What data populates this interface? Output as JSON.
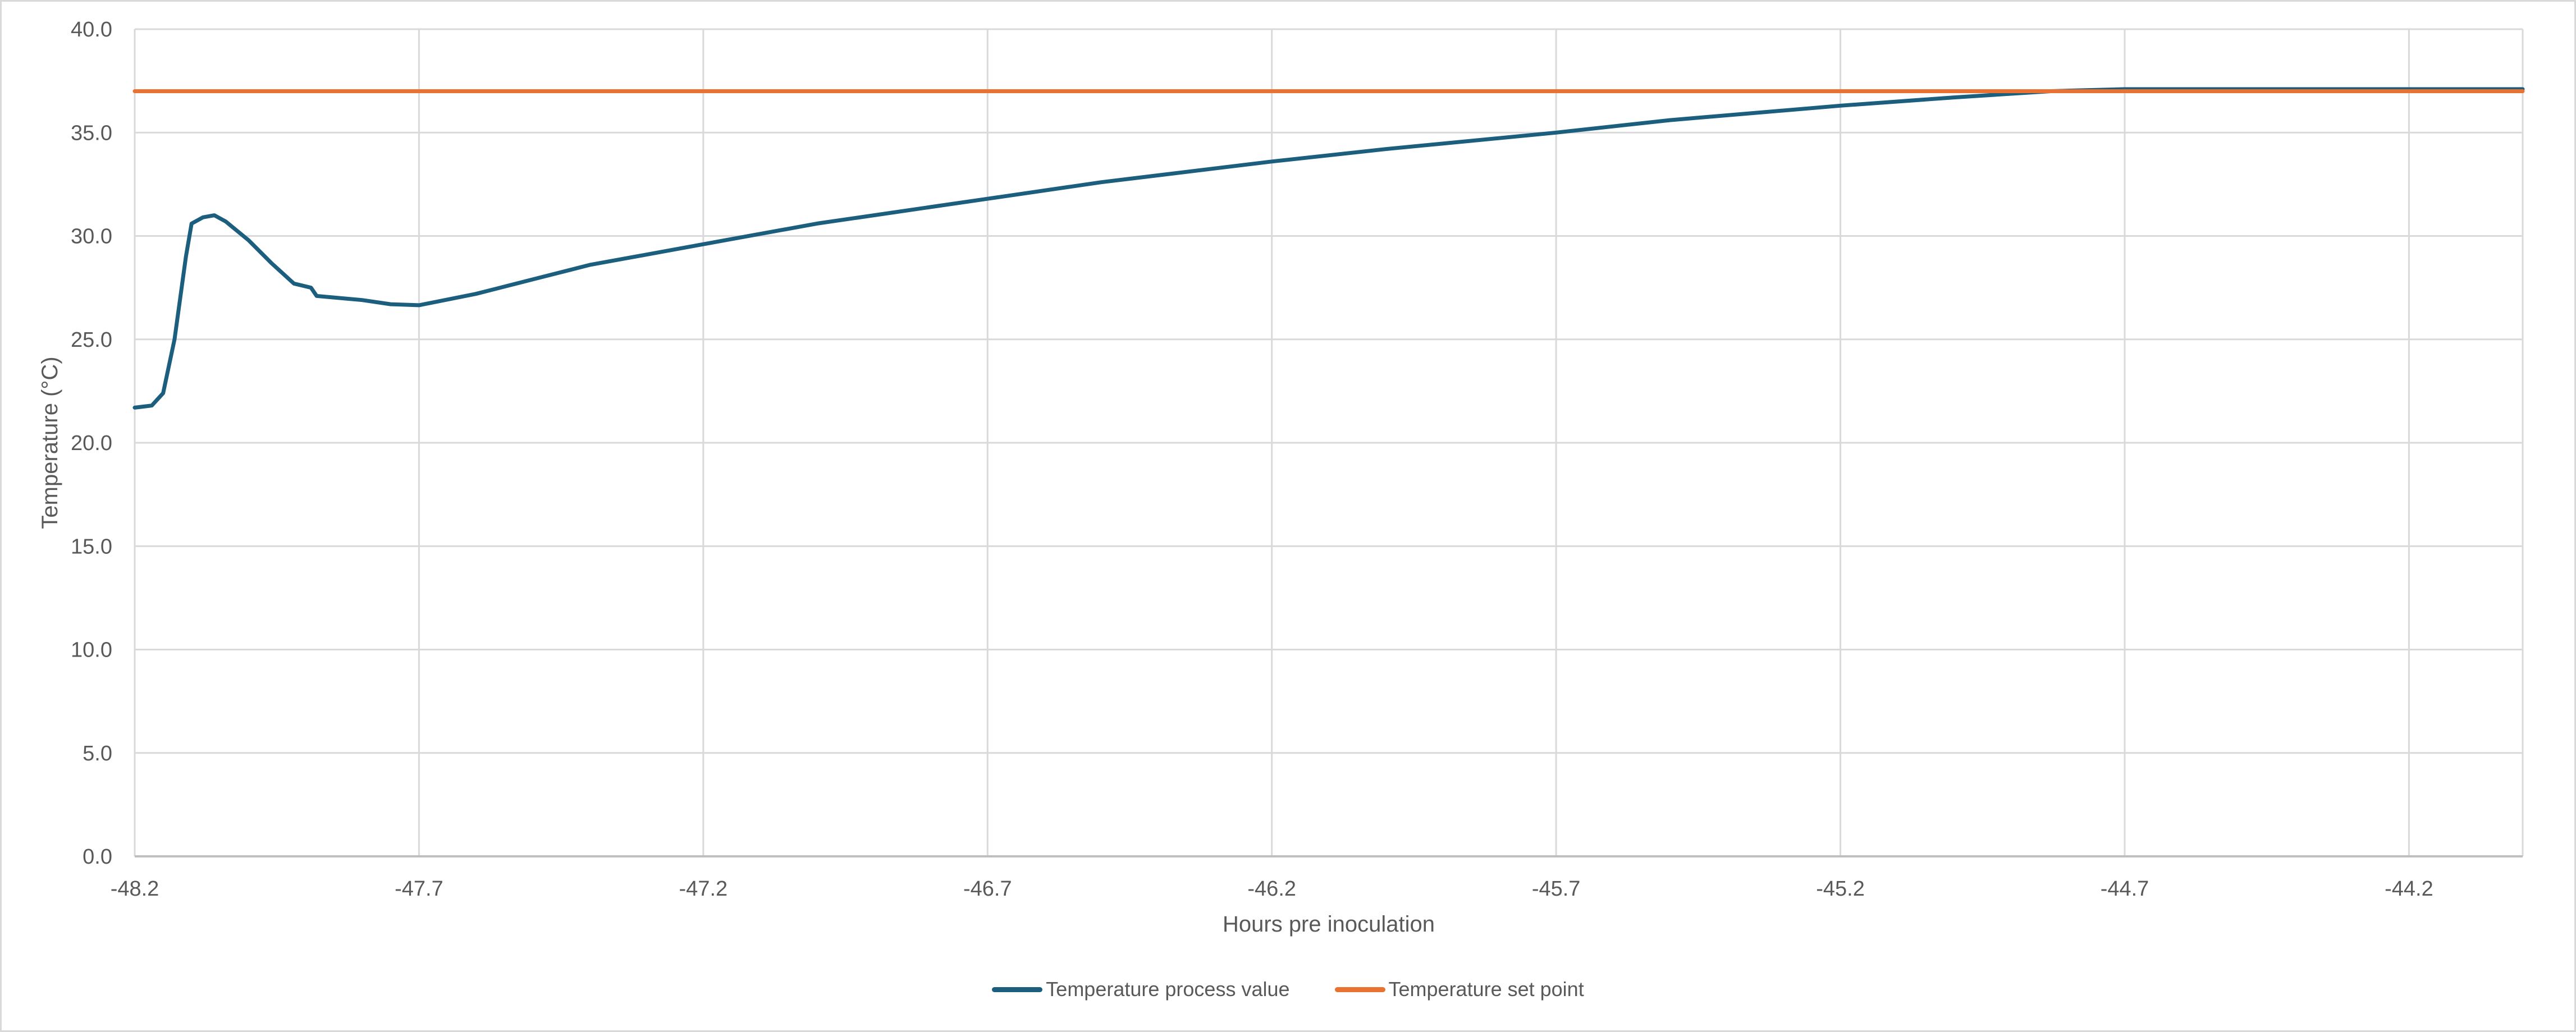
{
  "chart_data": {
    "type": "line",
    "title": "",
    "xlabel": "Hours pre inoculation",
    "ylabel": "Temperature  (°C)",
    "xlim": [
      -48.2,
      -44.0
    ],
    "ylim": [
      0,
      40
    ],
    "x_ticks": [
      "-48.2",
      "-47.7",
      "-47.2",
      "-46.7",
      "-46.2",
      "-45.7",
      "-45.2",
      "-44.7",
      "-44.2"
    ],
    "y_ticks": [
      "0.0",
      "5.0",
      "10.0",
      "15.0",
      "20.0",
      "25.0",
      "30.0",
      "35.0",
      "40.0"
    ],
    "grid": true,
    "legend_position": "bottom",
    "series": [
      {
        "name": "Temperature process value",
        "color": "#1b5e7e",
        "x": [
          -48.2,
          -48.17,
          -48.15,
          -48.13,
          -48.11,
          -48.1,
          -48.08,
          -48.06,
          -48.04,
          -48.0,
          -47.96,
          -47.92,
          -47.89,
          -47.88,
          -47.8,
          -47.75,
          -47.7,
          -47.6,
          -47.5,
          -47.4,
          -47.3,
          -47.2,
          -47.0,
          -46.8,
          -46.7,
          -46.5,
          -46.2,
          -46.0,
          -45.7,
          -45.5,
          -45.2,
          -45.0,
          -44.83,
          -44.7,
          -44.4,
          -44.0
        ],
        "values": [
          21.7,
          21.8,
          22.4,
          25.0,
          29.0,
          30.6,
          30.9,
          31.0,
          30.7,
          29.8,
          28.7,
          27.7,
          27.5,
          27.1,
          26.9,
          26.7,
          26.65,
          27.2,
          27.9,
          28.6,
          29.1,
          29.6,
          30.6,
          31.4,
          31.8,
          32.6,
          33.6,
          34.2,
          35.0,
          35.6,
          36.3,
          36.7,
          37.0,
          37.1,
          37.1,
          37.1
        ]
      },
      {
        "name": "Temperature set point",
        "color": "#e97132",
        "x": [
          -48.2,
          -44.0
        ],
        "values": [
          37.0,
          37.0
        ]
      }
    ]
  },
  "legend": {
    "items": [
      {
        "label": "Temperature process value",
        "color": "#1b5e7e"
      },
      {
        "label": "Temperature set point",
        "color": "#e97132"
      }
    ]
  }
}
